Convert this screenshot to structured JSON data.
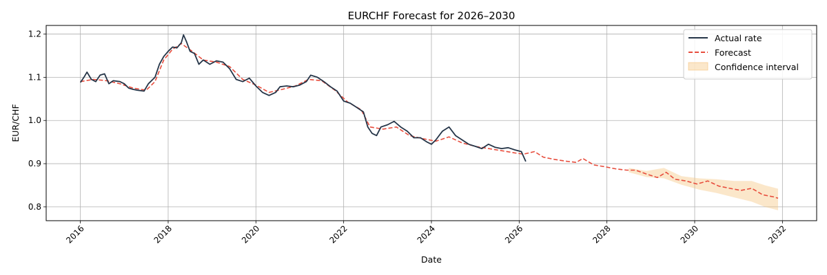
{
  "chart_data": {
    "type": "line",
    "title": "EURCHF Forecast for 2026–2030",
    "xlabel": "Date",
    "ylabel": "EUR/CHF",
    "xlim": [
      2015.22,
      2032.78
    ],
    "ylim": [
      0.768,
      1.22
    ],
    "x_ticks": [
      2016,
      2018,
      2020,
      2022,
      2024,
      2026,
      2028,
      2030,
      2032
    ],
    "x_tick_labels": [
      "2016",
      "2018",
      "2020",
      "2022",
      "2024",
      "2026",
      "2028",
      "2030",
      "2032"
    ],
    "y_ticks": [
      0.8,
      0.9,
      1.0,
      1.1,
      1.2
    ],
    "y_tick_labels": [
      "0.8",
      "0.9",
      "1.0",
      "1.1",
      "1.2"
    ],
    "grid": true,
    "legend_position": "top-right",
    "series": [
      {
        "name": "Actual rate",
        "color": "#243447",
        "style": "solid",
        "points": [
          [
            2016.0,
            1.088
          ],
          [
            2016.08,
            1.1
          ],
          [
            2016.15,
            1.112
          ],
          [
            2016.25,
            1.095
          ],
          [
            2016.35,
            1.09
          ],
          [
            2016.45,
            1.105
          ],
          [
            2016.55,
            1.108
          ],
          [
            2016.65,
            1.085
          ],
          [
            2016.75,
            1.092
          ],
          [
            2016.9,
            1.09
          ],
          [
            2017.0,
            1.085
          ],
          [
            2017.1,
            1.075
          ],
          [
            2017.2,
            1.072
          ],
          [
            2017.3,
            1.07
          ],
          [
            2017.45,
            1.068
          ],
          [
            2017.55,
            1.085
          ],
          [
            2017.7,
            1.1
          ],
          [
            2017.8,
            1.13
          ],
          [
            2017.9,
            1.148
          ],
          [
            2018.0,
            1.16
          ],
          [
            2018.1,
            1.17
          ],
          [
            2018.2,
            1.168
          ],
          [
            2018.3,
            1.18
          ],
          [
            2018.35,
            1.198
          ],
          [
            2018.42,
            1.182
          ],
          [
            2018.5,
            1.16
          ],
          [
            2018.6,
            1.155
          ],
          [
            2018.7,
            1.13
          ],
          [
            2018.8,
            1.14
          ],
          [
            2018.95,
            1.13
          ],
          [
            2019.1,
            1.138
          ],
          [
            2019.25,
            1.135
          ],
          [
            2019.4,
            1.12
          ],
          [
            2019.55,
            1.095
          ],
          [
            2019.7,
            1.09
          ],
          [
            2019.85,
            1.098
          ],
          [
            2020.0,
            1.08
          ],
          [
            2020.15,
            1.065
          ],
          [
            2020.3,
            1.058
          ],
          [
            2020.45,
            1.065
          ],
          [
            2020.55,
            1.078
          ],
          [
            2020.7,
            1.08
          ],
          [
            2020.85,
            1.078
          ],
          [
            2021.0,
            1.082
          ],
          [
            2021.15,
            1.09
          ],
          [
            2021.25,
            1.105
          ],
          [
            2021.4,
            1.1
          ],
          [
            2021.55,
            1.09
          ],
          [
            2021.7,
            1.078
          ],
          [
            2021.85,
            1.068
          ],
          [
            2022.0,
            1.045
          ],
          [
            2022.15,
            1.04
          ],
          [
            2022.3,
            1.03
          ],
          [
            2022.45,
            1.02
          ],
          [
            2022.55,
            0.985
          ],
          [
            2022.65,
            0.97
          ],
          [
            2022.75,
            0.965
          ],
          [
            2022.85,
            0.985
          ],
          [
            2023.0,
            0.99
          ],
          [
            2023.15,
            0.998
          ],
          [
            2023.3,
            0.985
          ],
          [
            2023.45,
            0.975
          ],
          [
            2023.6,
            0.96
          ],
          [
            2023.75,
            0.96
          ],
          [
            2023.9,
            0.95
          ],
          [
            2024.0,
            0.945
          ],
          [
            2024.1,
            0.955
          ],
          [
            2024.25,
            0.975
          ],
          [
            2024.4,
            0.985
          ],
          [
            2024.55,
            0.965
          ],
          [
            2024.7,
            0.955
          ],
          [
            2024.85,
            0.945
          ],
          [
            2025.0,
            0.94
          ],
          [
            2025.15,
            0.935
          ],
          [
            2025.3,
            0.945
          ],
          [
            2025.45,
            0.938
          ],
          [
            2025.6,
            0.935
          ],
          [
            2025.75,
            0.937
          ],
          [
            2025.9,
            0.932
          ],
          [
            2026.05,
            0.928
          ],
          [
            2026.15,
            0.905
          ]
        ]
      },
      {
        "name": "Forecast",
        "color": "#e74c3c",
        "style": "dashed",
        "points": [
          [
            2016.0,
            1.09
          ],
          [
            2016.3,
            1.095
          ],
          [
            2016.6,
            1.092
          ],
          [
            2016.9,
            1.085
          ],
          [
            2017.2,
            1.075
          ],
          [
            2017.5,
            1.07
          ],
          [
            2017.7,
            1.09
          ],
          [
            2017.9,
            1.14
          ],
          [
            2018.1,
            1.165
          ],
          [
            2018.3,
            1.178
          ],
          [
            2018.55,
            1.16
          ],
          [
            2018.8,
            1.14
          ],
          [
            2019.1,
            1.135
          ],
          [
            2019.4,
            1.125
          ],
          [
            2019.7,
            1.095
          ],
          [
            2020.0,
            1.082
          ],
          [
            2020.3,
            1.065
          ],
          [
            2020.6,
            1.072
          ],
          [
            2020.9,
            1.08
          ],
          [
            2021.2,
            1.095
          ],
          [
            2021.5,
            1.092
          ],
          [
            2021.8,
            1.07
          ],
          [
            2022.1,
            1.042
          ],
          [
            2022.4,
            1.025
          ],
          [
            2022.6,
            0.985
          ],
          [
            2022.9,
            0.98
          ],
          [
            2023.2,
            0.985
          ],
          [
            2023.5,
            0.965
          ],
          [
            2023.8,
            0.958
          ],
          [
            2024.1,
            0.952
          ],
          [
            2024.4,
            0.962
          ],
          [
            2024.7,
            0.948
          ],
          [
            2025.0,
            0.94
          ],
          [
            2025.3,
            0.935
          ],
          [
            2025.6,
            0.93
          ],
          [
            2025.9,
            0.925
          ],
          [
            2026.1,
            0.922
          ],
          [
            2026.35,
            0.928
          ],
          [
            2026.55,
            0.915
          ],
          [
            2026.8,
            0.91
          ],
          [
            2027.05,
            0.906
          ],
          [
            2027.3,
            0.903
          ],
          [
            2027.45,
            0.912
          ],
          [
            2027.7,
            0.897
          ],
          [
            2027.95,
            0.893
          ],
          [
            2028.2,
            0.888
          ],
          [
            2028.45,
            0.885
          ],
          [
            2028.65,
            0.885
          ],
          [
            2028.9,
            0.876
          ],
          [
            2029.15,
            0.868
          ],
          [
            2029.35,
            0.88
          ],
          [
            2029.55,
            0.864
          ],
          [
            2029.8,
            0.86
          ],
          [
            2030.05,
            0.853
          ],
          [
            2030.3,
            0.86
          ],
          [
            2030.55,
            0.848
          ],
          [
            2030.8,
            0.843
          ],
          [
            2031.05,
            0.838
          ],
          [
            2031.3,
            0.843
          ],
          [
            2031.55,
            0.828
          ],
          [
            2031.8,
            0.823
          ],
          [
            2031.9,
            0.82
          ]
        ]
      }
    ],
    "confidence_interval": {
      "name": "Confidence interval",
      "color": "#f5c27a",
      "opacity": 0.4,
      "points": [
        [
          2028.5,
          0.88,
          0.89
        ],
        [
          2028.9,
          0.869,
          0.883
        ],
        [
          2029.3,
          0.866,
          0.89
        ],
        [
          2029.7,
          0.851,
          0.871
        ],
        [
          2030.1,
          0.84,
          0.866
        ],
        [
          2030.5,
          0.832,
          0.864
        ],
        [
          2030.9,
          0.822,
          0.86
        ],
        [
          2031.3,
          0.812,
          0.86
        ],
        [
          2031.6,
          0.8,
          0.85
        ],
        [
          2031.9,
          0.792,
          0.842
        ]
      ]
    }
  }
}
